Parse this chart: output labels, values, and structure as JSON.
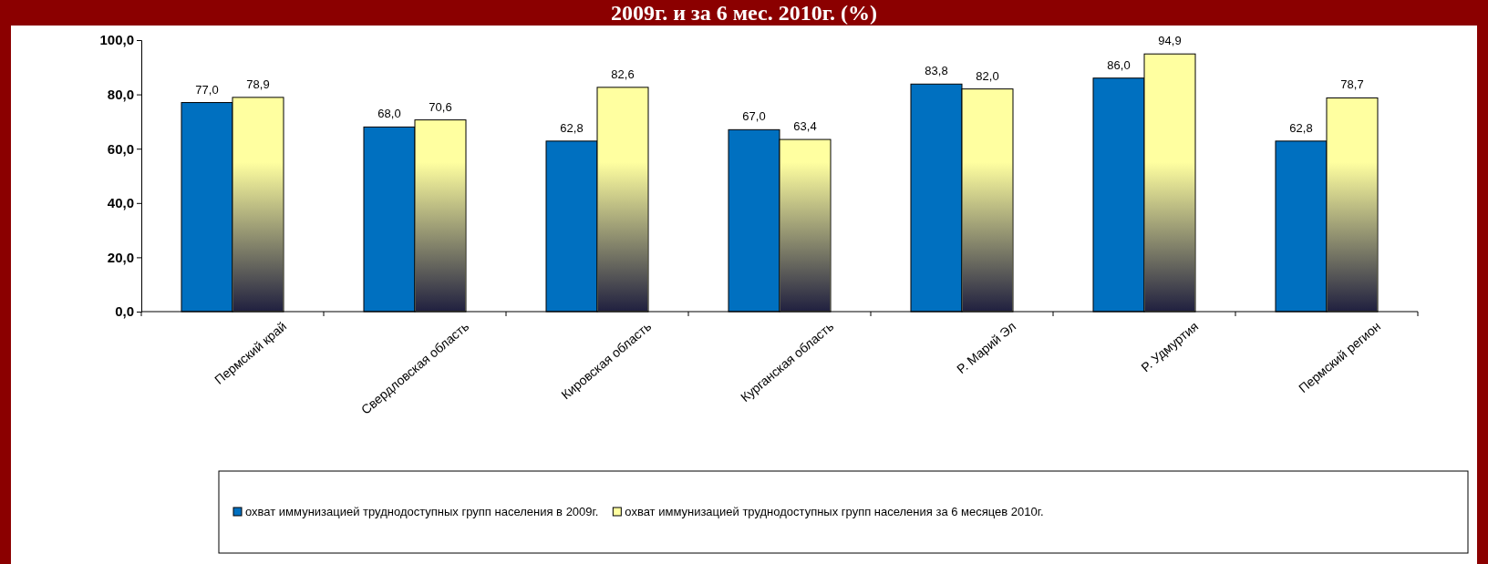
{
  "chart_data": {
    "type": "bar",
    "title": "2009г. и за 6 мес. 2010г. (%)",
    "categories": [
      "Пермский край",
      "Свердловская область",
      "Кировская область",
      "Курганская область",
      "Р. Марий Эл",
      "Р. Удмуртия",
      "Пермский  регион"
    ],
    "series": [
      {
        "name": "охват иммунизацией труднодоступных групп населения в 2009г.",
        "color": "#0070c0",
        "values": [
          77.0,
          68.0,
          62.8,
          67.0,
          83.8,
          86.0,
          62.8
        ],
        "value_labels": [
          "77,0",
          "68,0",
          "62,8",
          "67,0",
          "83,8",
          "86,0",
          "62,8"
        ]
      },
      {
        "name": "охват иммунизацией труднодоступных групп населения за 6 месяцев 2010г.",
        "color": "#ffffa0",
        "values": [
          78.9,
          70.6,
          82.6,
          63.4,
          82.0,
          94.9,
          78.7
        ],
        "value_labels": [
          "78,9",
          "70,6",
          "82,6",
          "63,4",
          "82,0",
          "94,9",
          "78,7"
        ]
      }
    ],
    "ylim": [
      0,
      100
    ],
    "yticks": [
      {
        "value": 0,
        "label": "0,0"
      },
      {
        "value": 20,
        "label": "20,0"
      },
      {
        "value": 40,
        "label": "40,0"
      },
      {
        "value": 60,
        "label": "60,0"
      },
      {
        "value": 80,
        "label": "80,0"
      },
      {
        "value": 100,
        "label": "100,0"
      }
    ],
    "legend": "bottom",
    "grid": false
  }
}
